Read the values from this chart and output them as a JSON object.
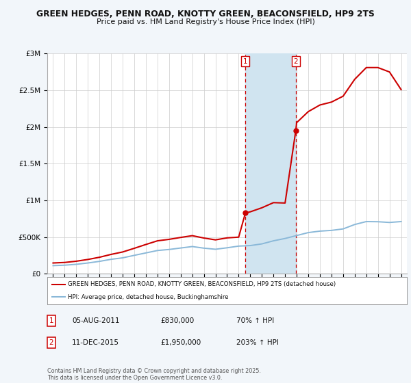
{
  "title1": "GREEN HEDGES, PENN ROAD, KNOTTY GREEN, BEACONSFIELD, HP9 2TS",
  "title2": "Price paid vs. HM Land Registry's House Price Index (HPI)",
  "bg_color": "#f2f6fa",
  "plot_bg_color": "#ffffff",
  "red_color": "#cc0000",
  "blue_color": "#8ab8d8",
  "highlight_color": "#d0e4f0",
  "sale1_price": 830000,
  "sale1_hpi_pct": "70% ↑ HPI",
  "sale1_date_str": "05-AUG-2011",
  "sale1_x": 2011.58,
  "sale2_price": 1950000,
  "sale2_hpi_pct": "203% ↑ HPI",
  "sale2_date_str": "11-DEC-2015",
  "sale2_x": 2015.92,
  "legend1": "GREEN HEDGES, PENN ROAD, KNOTTY GREEN, BEACONSFIELD, HP9 2TS (detached house)",
  "legend2": "HPI: Average price, detached house, Buckinghamshire",
  "footer": "Contains HM Land Registry data © Crown copyright and database right 2025.\nThis data is licensed under the Open Government Licence v3.0.",
  "ylim_max": 3000000,
  "yticks": [
    0,
    500000,
    1000000,
    1500000,
    2000000,
    2500000,
    3000000
  ],
  "ytick_labels": [
    "£0",
    "£500K",
    "£1M",
    "£1.5M",
    "£2M",
    "£2.5M",
    "£3M"
  ],
  "hpi_years": [
    1995,
    1996,
    1997,
    1998,
    1999,
    2000,
    2001,
    2002,
    2003,
    2004,
    2005,
    2006,
    2007,
    2008,
    2009,
    2010,
    2011,
    2012,
    2013,
    2014,
    2015,
    2016,
    2017,
    2018,
    2019,
    2020,
    2021,
    2022,
    2023,
    2024,
    2025
  ],
  "hpi_values": [
    112000,
    118000,
    130000,
    148000,
    170000,
    198000,
    218000,
    252000,
    285000,
    318000,
    332000,
    352000,
    372000,
    350000,
    335000,
    355000,
    378000,
    385000,
    408000,
    450000,
    482000,
    522000,
    562000,
    582000,
    592000,
    612000,
    672000,
    712000,
    710000,
    700000,
    712000
  ],
  "red_years": [
    1995,
    1996,
    1997,
    1998,
    1999,
    2000,
    2001,
    2002,
    2003,
    2004,
    2005,
    2006,
    2007,
    2008,
    2009,
    2010,
    2011.0,
    2011.58,
    2012,
    2013,
    2014,
    2015.0,
    2015.92,
    2016,
    2017,
    2018,
    2019,
    2020,
    2021,
    2022,
    2023,
    2024,
    2025
  ],
  "red_values": [
    148000,
    155000,
    172000,
    196000,
    226000,
    265000,
    298000,
    348000,
    400000,
    450000,
    470000,
    496000,
    520000,
    488000,
    463000,
    490000,
    500000,
    830000,
    845000,
    900000,
    970000,
    965000,
    1950000,
    2060000,
    2210000,
    2300000,
    2340000,
    2420000,
    2650000,
    2810000,
    2810000,
    2750000,
    2510000
  ]
}
